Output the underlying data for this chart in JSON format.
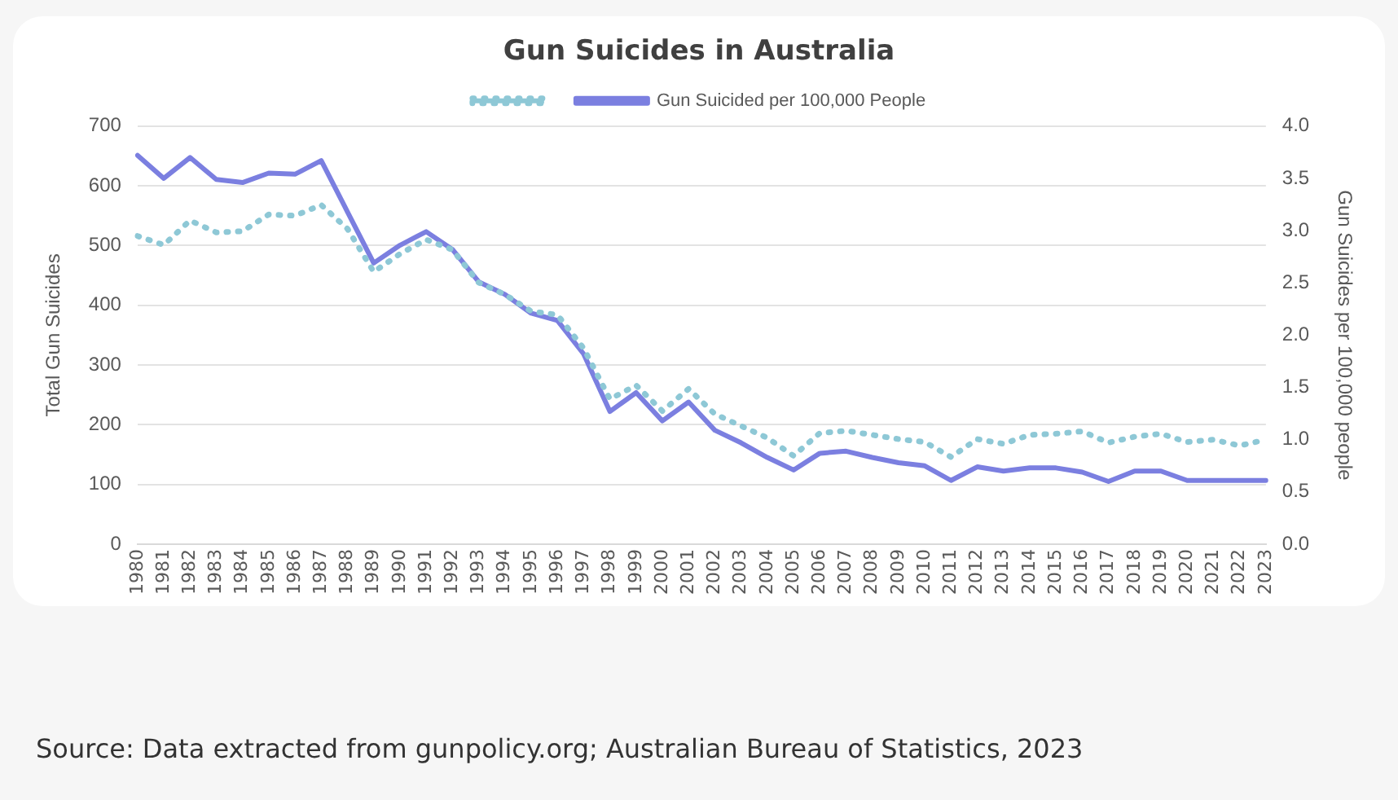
{
  "chart_data": {
    "type": "line",
    "title": "Gun Suicides in Australia",
    "ylabel": "Total Gun Suicides",
    "y2label": "Gun Suicides per 100,000 people",
    "categories": [
      "1980",
      "1981",
      "1982",
      "1983",
      "1984",
      "1985",
      "1986",
      "1987",
      "1988",
      "1989",
      "1990",
      "1991",
      "1992",
      "1993",
      "1994",
      "1995",
      "1996",
      "1997",
      "1998",
      "1999",
      "2000",
      "2001",
      "2002",
      "2003",
      "2004",
      "2005",
      "2006",
      "2007",
      "2008",
      "2009",
      "2010",
      "2011",
      "2012",
      "2013",
      "2014",
      "2015",
      "2016",
      "2017",
      "2018",
      "2019",
      "2020",
      "2021",
      "2022",
      "2023"
    ],
    "series": [
      {
        "color": "#8ec8d6",
        "line_style": "dotted",
        "values": [
          516,
          501,
          542,
          522,
          524,
          552,
          550,
          568,
          528,
          456,
          486,
          510,
          493,
          438,
          418,
          390,
          384,
          328,
          243,
          266,
          223,
          260,
          218,
          198,
          178,
          148,
          186,
          190,
          183,
          176,
          171,
          146,
          176,
          168,
          183,
          185,
          189,
          170,
          180,
          185,
          171,
          175,
          165,
          175
        ]
      },
      {
        "name": "Gun Suicided per 100,000 People",
        "color": "#7b7fe0",
        "line_style": "solid",
        "axis": "y2",
        "values": [
          3.72,
          3.5,
          3.7,
          3.49,
          3.46,
          3.55,
          3.54,
          3.67,
          3.18,
          2.69,
          2.86,
          2.99,
          2.82,
          2.51,
          2.39,
          2.21,
          2.14,
          1.82,
          1.27,
          1.45,
          1.18,
          1.36,
          1.09,
          0.97,
          0.83,
          0.71,
          0.87,
          0.89,
          0.83,
          0.78,
          0.75,
          0.61,
          0.74,
          0.7,
          0.73,
          0.73,
          0.69,
          0.6,
          0.7,
          0.7,
          0.61,
          0.61,
          0.61,
          0.61
        ]
      }
    ],
    "ylim": [
      0,
      700
    ],
    "yticks": [
      0,
      100,
      200,
      300,
      400,
      500,
      600,
      700
    ],
    "y2lim": [
      0,
      4
    ],
    "y2ticks": [
      {
        "value": 0,
        "label": "0.0"
      },
      {
        "value": 0.5,
        "label": "0.5"
      },
      {
        "value": 1,
        "label": "1.0"
      },
      {
        "value": 1.5,
        "label": "1.5"
      },
      {
        "value": 2,
        "label": "2.0"
      },
      {
        "value": 2.5,
        "label": "2.5"
      },
      {
        "value": 3,
        "label": "3.0"
      },
      {
        "value": 3.5,
        "label": "3.5"
      },
      {
        "value": 4,
        "label": "4.0"
      }
    ],
    "grid": "y",
    "legend": "top",
    "marker": "none",
    "annotations": [
      "Source: Data extracted from gunpolicy.org; Australian Bureau of Statistics, 2023"
    ]
  }
}
